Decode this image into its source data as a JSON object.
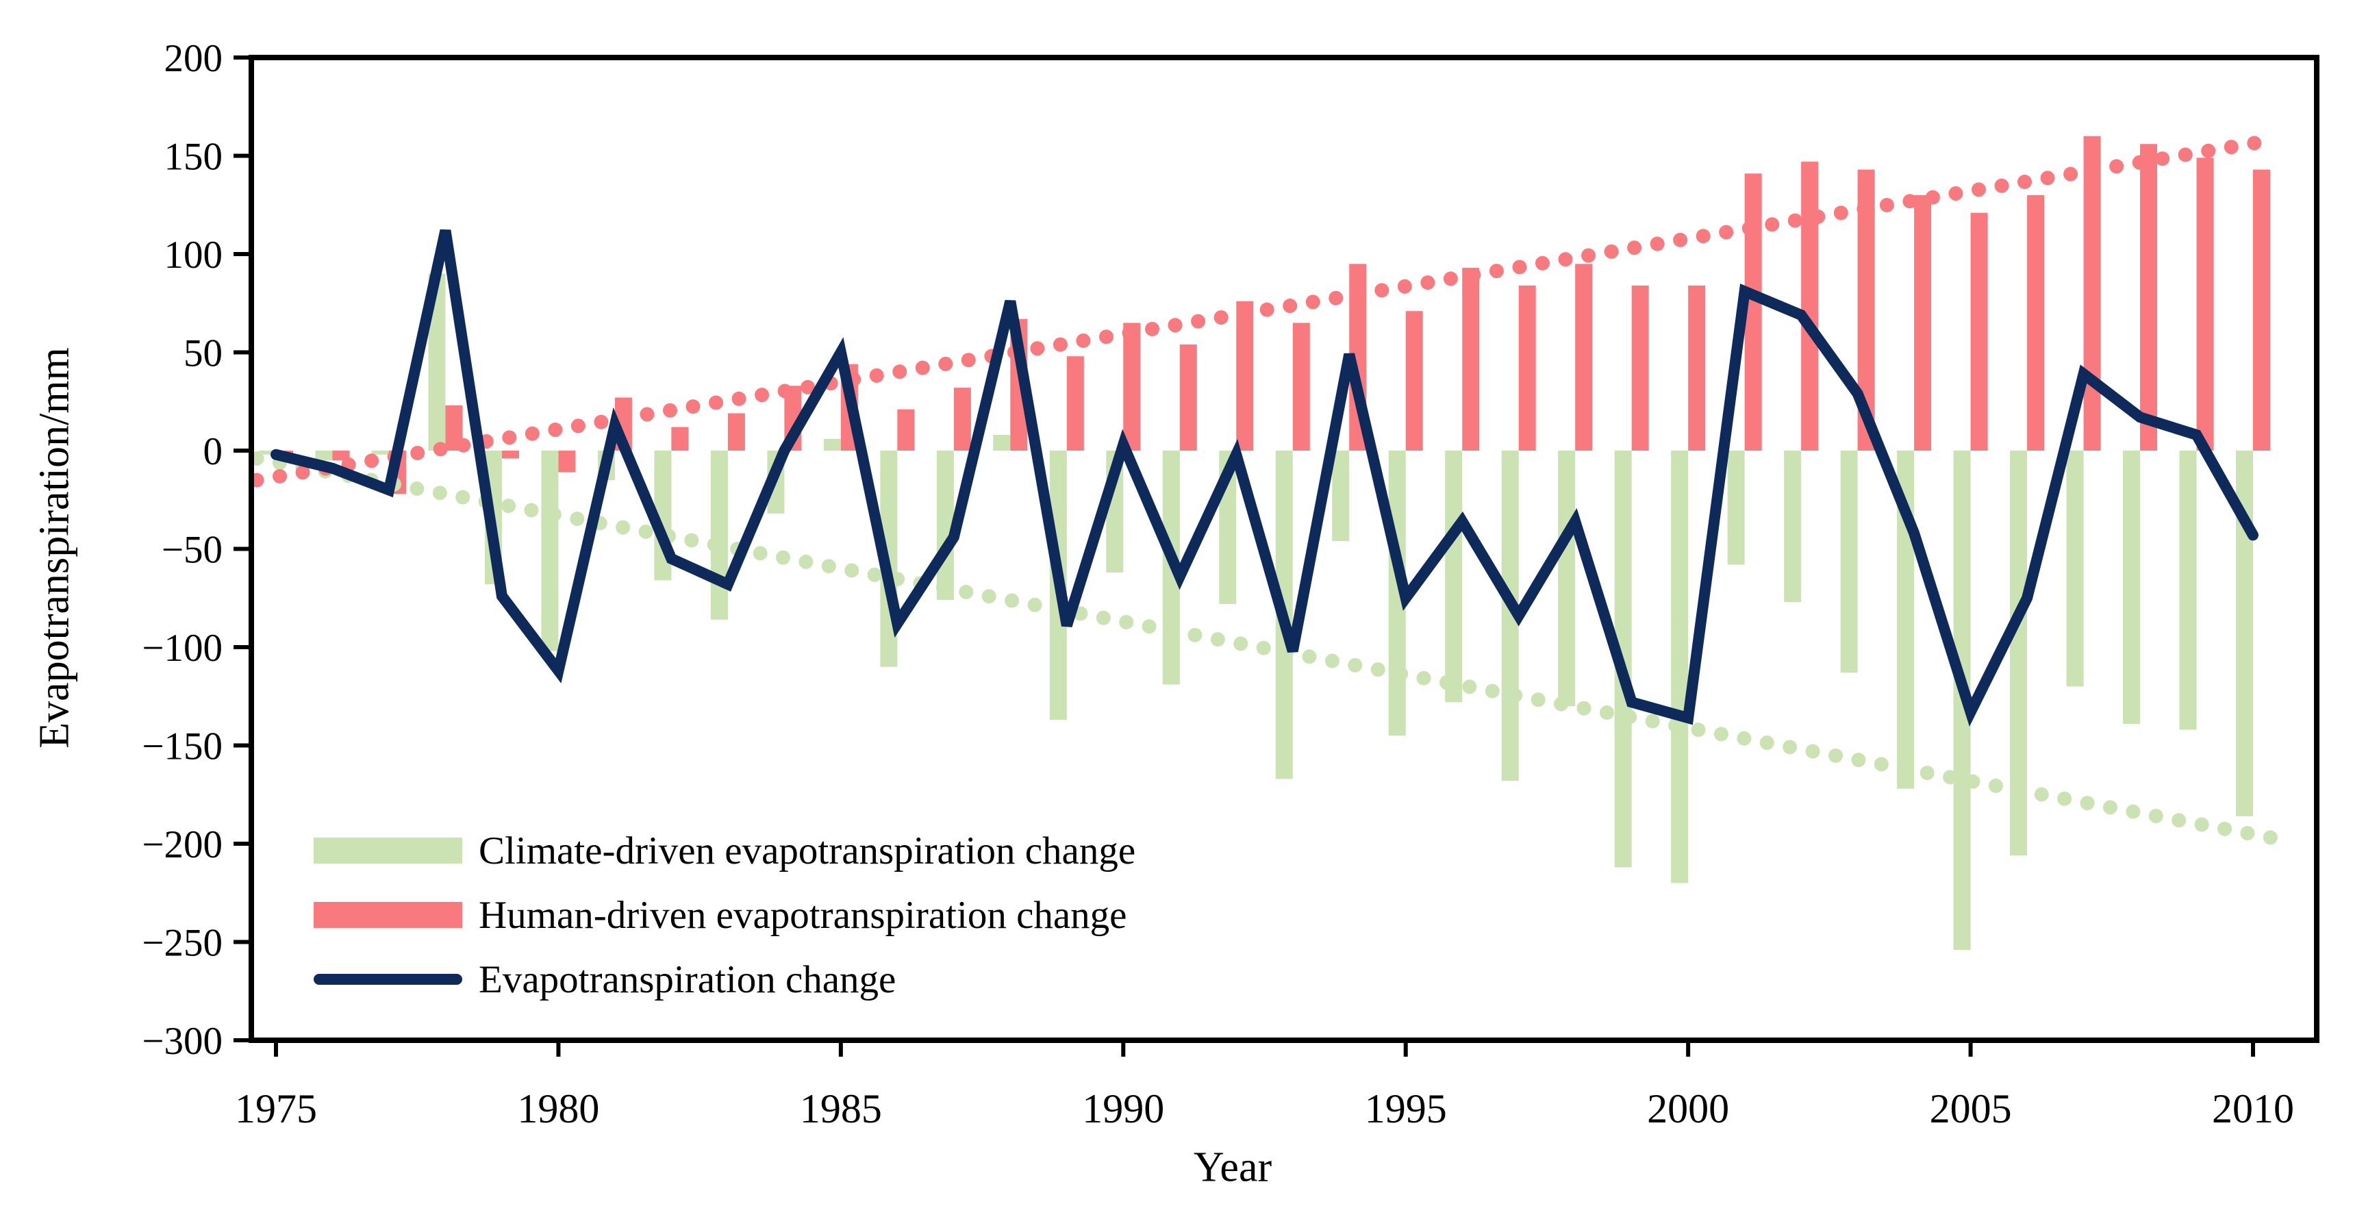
{
  "labels": {
    "y_axis": "Evapotranspiration/mm",
    "x_axis": "Year"
  },
  "colors": {
    "climate": "#CBE2B3",
    "human": "#F8797E",
    "total_line": "#0E2A5B",
    "climate_trend": "#CBE2B3",
    "human_trend": "#F8797E",
    "axis": "#000000",
    "background": "#FFFFFF"
  },
  "chart_data": {
    "type": "bar+line",
    "title": "",
    "xlabel": "Year",
    "ylabel": "Evapotranspiration/mm",
    "x": [
      1975,
      1976,
      1977,
      1978,
      1979,
      1980,
      1981,
      1982,
      1983,
      1984,
      1985,
      1986,
      1987,
      1988,
      1989,
      1990,
      1991,
      1992,
      1993,
      1994,
      1995,
      1996,
      1997,
      1998,
      1999,
      2000,
      2001,
      2002,
      2003,
      2004,
      2005,
      2006,
      2007,
      2008,
      2009,
      2010
    ],
    "series": [
      {
        "name": "Climate-driven evapotranspiration change",
        "type": "bar",
        "color_key": "climate",
        "values": [
          -2,
          -5,
          -2,
          90,
          -68,
          -102,
          -15,
          -66,
          -86,
          -32,
          6,
          -110,
          -76,
          8,
          -137,
          -62,
          -119,
          -78,
          -167,
          -46,
          -145,
          -128,
          -168,
          -130,
          -212,
          -220,
          -58,
          -77,
          -113,
          -172,
          -254,
          -206,
          -120,
          -139,
          -142,
          -186
        ]
      },
      {
        "name": "Human-driven evapotranspiration change",
        "type": "bar",
        "color_key": "human",
        "values": [
          -3,
          -5,
          -22,
          23,
          -4,
          -11,
          27,
          12,
          19,
          33,
          44,
          21,
          32,
          67,
          48,
          65,
          54,
          76,
          65,
          95,
          71,
          93,
          84,
          95,
          84,
          84,
          141,
          147,
          143,
          130,
          121,
          130,
          160,
          156,
          149,
          143
        ]
      },
      {
        "name": "Evapotranspiration change",
        "type": "line",
        "color_key": "total_line",
        "values": [
          -2,
          -9,
          -20,
          112,
          -74,
          -112,
          13,
          -55,
          -68,
          0,
          50,
          -88,
          -44,
          76,
          -89,
          3,
          -64,
          -2,
          -102,
          49,
          -75,
          -36,
          -84,
          -36,
          -128,
          -136,
          81,
          69,
          29,
          -42,
          -133,
          -75,
          39,
          17,
          8,
          -43
        ]
      },
      {
        "name": "human-trend-dotted",
        "type": "dotted-trend",
        "color_key": "human_trend",
        "start": -15,
        "end": 158
      },
      {
        "name": "climate-trend-dotted",
        "type": "dotted-trend",
        "color_key": "climate_trend",
        "start": -4,
        "end": -197
      }
    ],
    "axes": {
      "ylim": [
        -300,
        200
      ],
      "ytick_values": [
        200,
        150,
        100,
        50,
        0,
        -50,
        -100,
        -150,
        -200,
        -250,
        -300
      ],
      "ytick_labels": [
        "200",
        "150",
        "100",
        "50",
        "0",
        "−50",
        "−100",
        "−150",
        "−200",
        "−250",
        "−300"
      ],
      "xtick_years": [
        1975,
        1980,
        1985,
        1990,
        1995,
        2000,
        2005,
        2010
      ],
      "xtick_labels": [
        "1975",
        "1980",
        "1985",
        "1990",
        "1995",
        "2000",
        "2005",
        "2010"
      ],
      "grid": false,
      "legend_position": "bottom-left"
    }
  }
}
